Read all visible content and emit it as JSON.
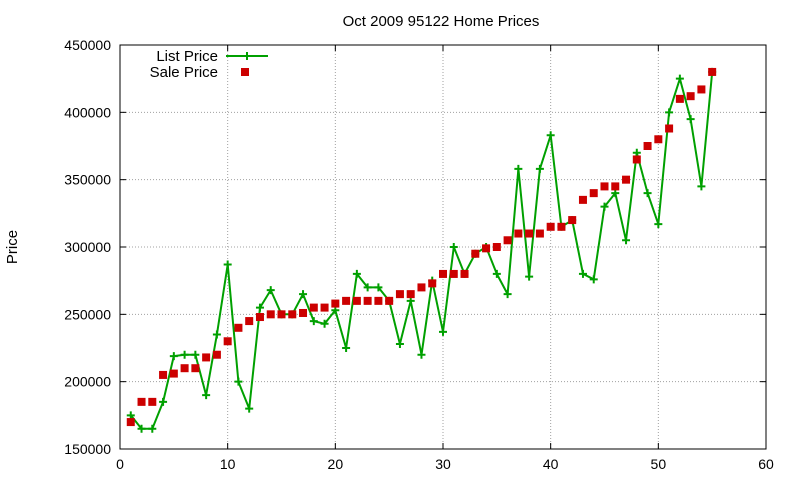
{
  "chart_data": {
    "type": "line",
    "title": "Oct 2009 95122 Home Prices",
    "xlabel": "",
    "ylabel": "Price",
    "xlim": [
      0,
      60
    ],
    "ylim": [
      150000,
      450000
    ],
    "xticks": [
      0,
      10,
      20,
      30,
      40,
      50,
      60
    ],
    "yticks": [
      150000,
      200000,
      250000,
      300000,
      350000,
      400000,
      450000
    ],
    "grid": true,
    "legend_position": "top-left",
    "series": [
      {
        "name": "List Price",
        "style": "line-points",
        "color": "#00a000",
        "x": [
          1,
          2,
          3,
          4,
          5,
          6,
          7,
          8,
          9,
          10,
          11,
          12,
          13,
          14,
          15,
          16,
          17,
          18,
          19,
          20,
          21,
          22,
          23,
          24,
          25,
          26,
          27,
          28,
          29,
          30,
          31,
          32,
          33,
          34,
          35,
          36,
          37,
          38,
          39,
          40,
          41,
          42,
          43,
          44,
          45,
          46,
          47,
          48,
          49,
          50,
          51,
          52,
          53,
          54,
          55
        ],
        "values": [
          175000,
          165000,
          165000,
          185000,
          219000,
          220000,
          220000,
          190000,
          235000,
          287000,
          200000,
          180000,
          255000,
          268000,
          250000,
          250000,
          265000,
          245000,
          243000,
          253000,
          225000,
          280000,
          270000,
          270000,
          260000,
          228000,
          260000,
          220000,
          275000,
          237000,
          300000,
          280000,
          295000,
          300000,
          280000,
          265000,
          358000,
          278000,
          358000,
          383000,
          315000,
          320000,
          280000,
          276000,
          330000,
          340000,
          305000,
          370000,
          340000,
          317000,
          400000,
          425000,
          395000,
          345000,
          430000
        ]
      },
      {
        "name": "Sale Price",
        "style": "points",
        "color": "#cc0000",
        "x": [
          1,
          2,
          3,
          4,
          5,
          6,
          7,
          8,
          9,
          10,
          11,
          12,
          13,
          14,
          15,
          16,
          17,
          18,
          19,
          20,
          21,
          22,
          23,
          24,
          25,
          26,
          27,
          28,
          29,
          30,
          31,
          32,
          33,
          34,
          35,
          36,
          37,
          38,
          39,
          40,
          41,
          42,
          43,
          44,
          45,
          46,
          47,
          48,
          49,
          50,
          51,
          52,
          53,
          54,
          55
        ],
        "values": [
          170000,
          185000,
          185000,
          205000,
          206000,
          210000,
          210000,
          218000,
          220000,
          230000,
          240000,
          245000,
          248000,
          250000,
          250000,
          250000,
          251000,
          255000,
          255000,
          258000,
          260000,
          260000,
          260000,
          260000,
          260000,
          265000,
          265000,
          270000,
          273000,
          280000,
          280000,
          280000,
          295000,
          299000,
          300000,
          305000,
          310000,
          310000,
          310000,
          315000,
          315000,
          320000,
          335000,
          340000,
          345000,
          345000,
          350000,
          365000,
          375000,
          380000,
          388000,
          410000,
          412000,
          417000,
          430000
        ]
      }
    ]
  }
}
